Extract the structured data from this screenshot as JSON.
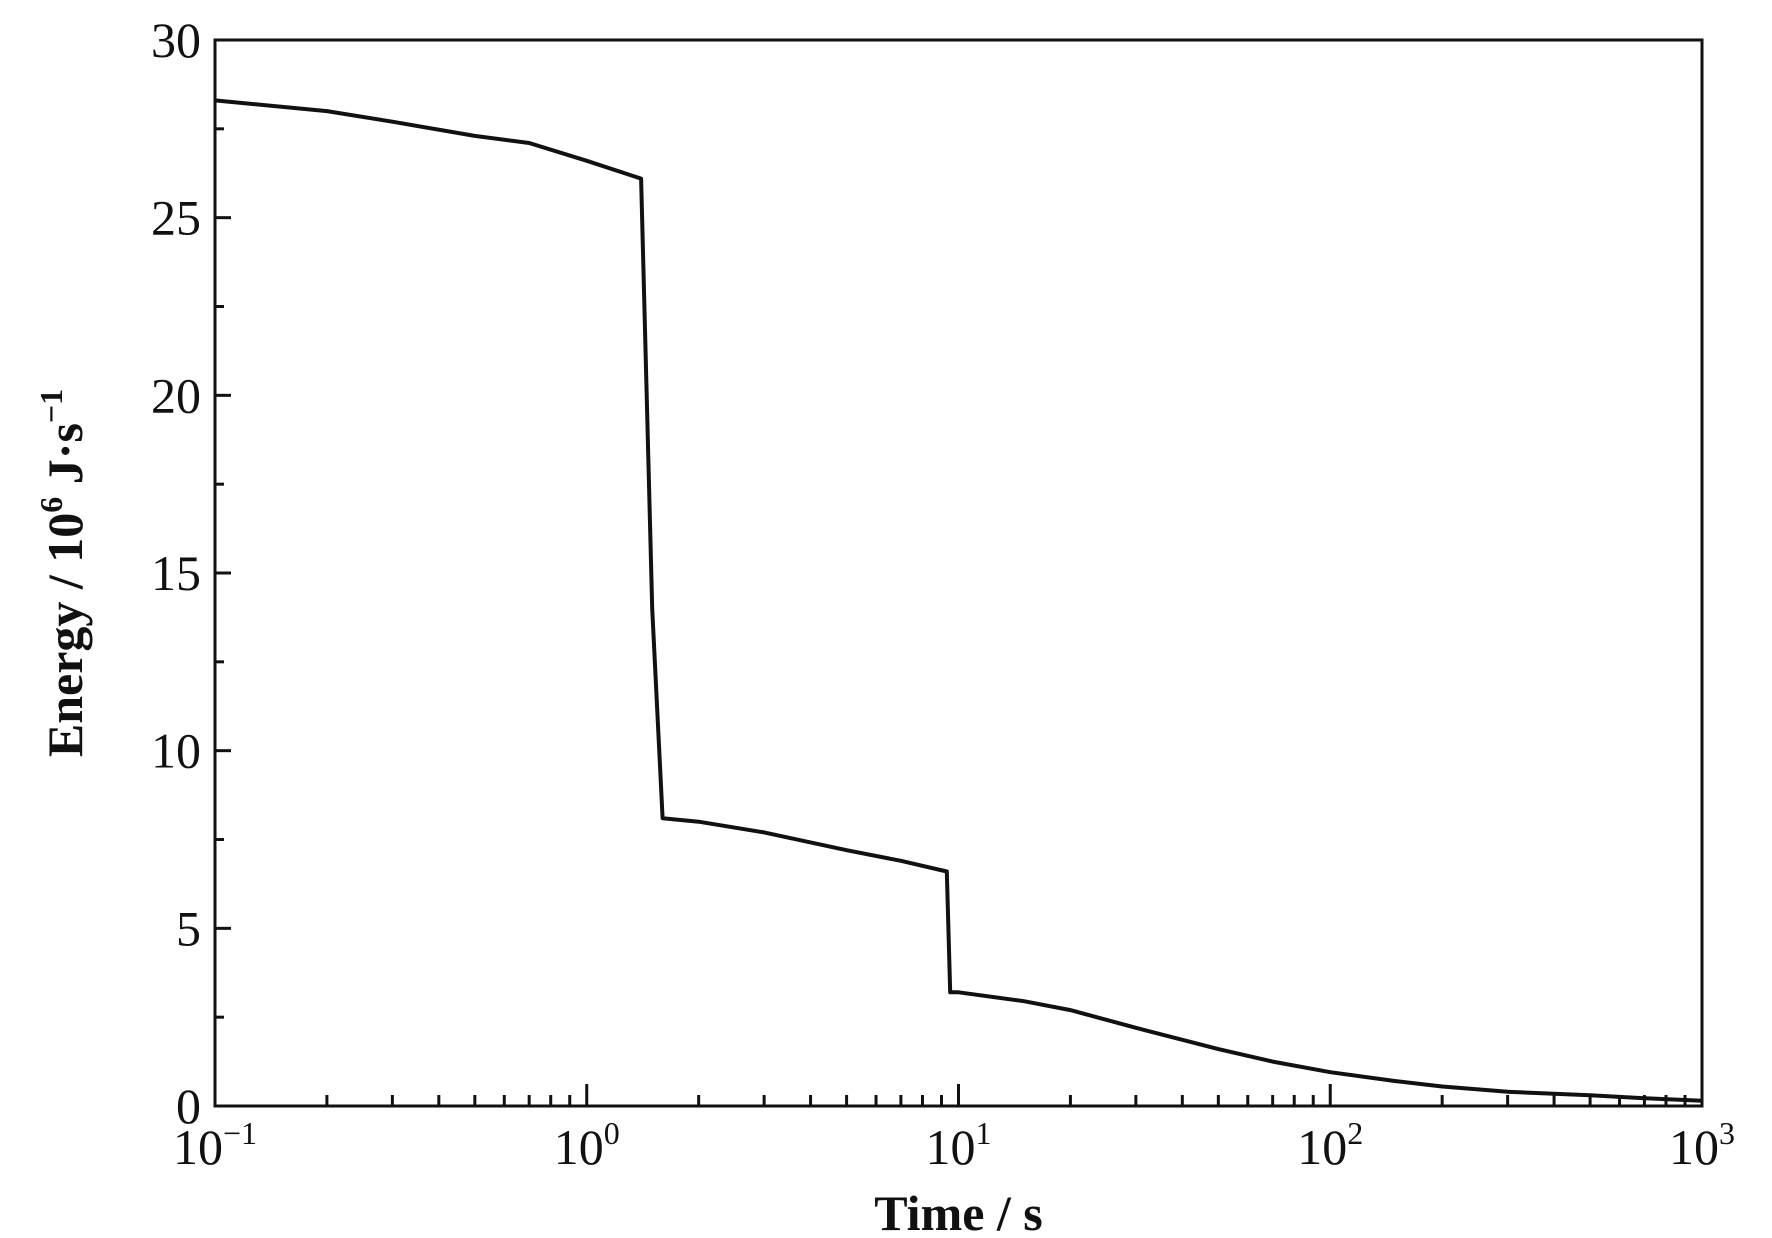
{
  "chart_data": {
    "type": "line",
    "xscale": "log",
    "xlim": [
      0.1,
      1000
    ],
    "ylim": [
      0,
      30
    ],
    "grid": false,
    "legend": "none",
    "xlabel": "Time / s",
    "ylabel": {
      "prefix": "Energy / 10",
      "exponent": "6",
      "suffix": " J·s",
      "suffix_exponent": "−1"
    },
    "yticks": [
      0,
      5,
      10,
      15,
      20,
      25,
      30
    ],
    "ytick_labels": [
      "0",
      "5",
      "10",
      "15",
      "20",
      "25",
      "30"
    ],
    "xticks": [
      0.1,
      1,
      10,
      100,
      1000
    ],
    "xtick_labels": [
      {
        "base": "10",
        "exp": "−1"
      },
      {
        "base": "10",
        "exp": "0"
      },
      {
        "base": "10",
        "exp": "1"
      },
      {
        "base": "10",
        "exp": "2"
      },
      {
        "base": "10",
        "exp": "3"
      }
    ],
    "series": [
      {
        "color": "#111111",
        "x": [
          0.1,
          0.2,
          0.3,
          0.5,
          0.7,
          1.0,
          1.4,
          1.5,
          1.6,
          2.0,
          3.0,
          5.0,
          7.0,
          9.3,
          9.5,
          10.0,
          15,
          20,
          30,
          50,
          70,
          100,
          150,
          200,
          300,
          500,
          700,
          1000
        ],
        "y": [
          28.3,
          28.0,
          27.7,
          27.3,
          27.1,
          26.6,
          26.1,
          14.0,
          8.1,
          8.0,
          7.7,
          7.2,
          6.9,
          6.6,
          3.2,
          3.2,
          2.95,
          2.7,
          2.2,
          1.6,
          1.25,
          0.95,
          0.7,
          0.55,
          0.4,
          0.3,
          0.22,
          0.15
        ]
      }
    ]
  }
}
